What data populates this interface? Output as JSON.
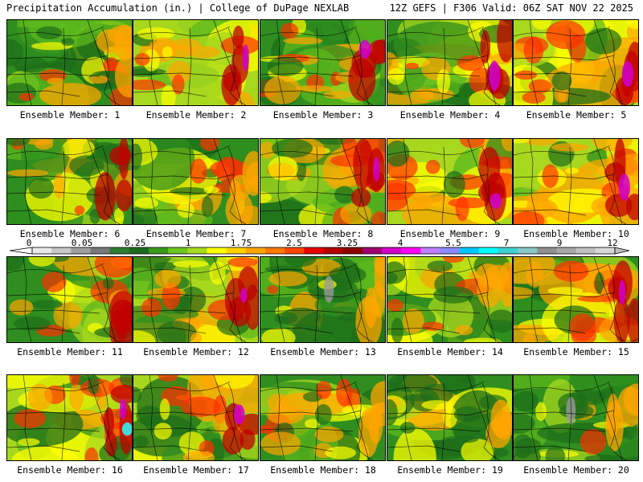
{
  "header": {
    "left": "Precipitation Accumulation (in.) | College of DuPage NEXLAB",
    "right": "12Z GEFS | F306 Valid: 06Z SAT NOV 22 2025"
  },
  "panel_caption_prefix": "Ensemble Member:",
  "members": [
    {
      "label": "Ensemble Member: 1",
      "wetness": 0.35,
      "seed": 11
    },
    {
      "label": "Ensemble Member: 2",
      "wetness": 0.62,
      "seed": 23
    },
    {
      "label": "Ensemble Member: 3",
      "wetness": 0.5,
      "seed": 37
    },
    {
      "label": "Ensemble Member: 4",
      "wetness": 0.55,
      "seed": 41
    },
    {
      "label": "Ensemble Member: 5",
      "wetness": 0.65,
      "seed": 53
    },
    {
      "label": "Ensemble Member: 6",
      "wetness": 0.45,
      "seed": 67
    },
    {
      "label": "Ensemble Member: 7",
      "wetness": 0.4,
      "seed": 71
    },
    {
      "label": "Ensemble Member: 8",
      "wetness": 0.5,
      "seed": 83
    },
    {
      "label": "Ensemble Member: 9",
      "wetness": 0.72,
      "seed": 97
    },
    {
      "label": "Ensemble Member: 10",
      "wetness": 0.75,
      "seed": 101
    },
    {
      "label": "Ensemble Member: 11",
      "wetness": 0.45,
      "seed": 113
    },
    {
      "label": "Ensemble Member: 12",
      "wetness": 0.58,
      "seed": 127
    },
    {
      "label": "Ensemble Member: 13",
      "wetness": 0.22,
      "seed": 131
    },
    {
      "label": "Ensemble Member: 14",
      "wetness": 0.38,
      "seed": 149
    },
    {
      "label": "Ensemble Member: 15",
      "wetness": 0.5,
      "seed": 151
    },
    {
      "label": "Ensemble Member: 16",
      "wetness": 0.62,
      "seed": 163
    },
    {
      "label": "Ensemble Member: 17",
      "wetness": 0.6,
      "seed": 173
    },
    {
      "label": "Ensemble Member: 18",
      "wetness": 0.4,
      "seed": 181
    },
    {
      "label": "Ensemble Member: 19",
      "wetness": 0.32,
      "seed": 191
    },
    {
      "label": "Ensemble Member: 20",
      "wetness": 0.25,
      "seed": 199
    }
  ],
  "colorbar": {
    "labels": [
      "0",
      "0.05",
      "0.25",
      "1",
      "1.75",
      "2.5",
      "3.25",
      "4",
      "5.5",
      "7",
      "9",
      "12"
    ],
    "colors": [
      "#e8e8e8",
      "#c8c8c8",
      "#a0a0a0",
      "#7a7a7a",
      "#2e7d32",
      "#1f6b1f",
      "#3a9a1a",
      "#6cc61e",
      "#a8dc1e",
      "#ffff00",
      "#ffd200",
      "#ffa600",
      "#ff7a00",
      "#ff4500",
      "#e60000",
      "#b40000",
      "#8c0000",
      "#a0006e",
      "#d200c8",
      "#ff00ff",
      "#c080ff",
      "#8a8aff",
      "#00c8ff",
      "#00ffff",
      "#40d0d0",
      "#8ac8c8",
      "#909090",
      "#a8a8a8",
      "#c0c0c0",
      "#d8d8d8"
    ]
  },
  "palette": {
    "green_dark": "#1e6e1a",
    "green": "#2f8e1f",
    "green_light": "#5cb81e",
    "lime": "#a8d81e",
    "yellow": "#ffff00",
    "orange": "#ffa500",
    "red": "#ff3000",
    "darkred": "#c00000",
    "magenta": "#d000d0",
    "cyan": "#30f0f0",
    "gray": "#9a9a9a"
  }
}
